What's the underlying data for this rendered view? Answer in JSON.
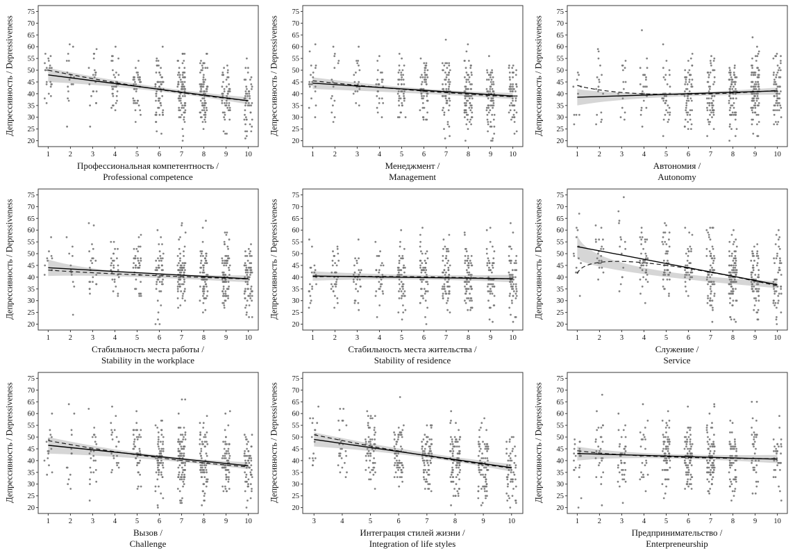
{
  "figure": {
    "ylabel_line1": "Депрессивность /",
    "ylabel_line2": "Depressiveness",
    "colors": {
      "point": "#757575",
      "band": "#cccccc",
      "solid_line": "#000000",
      "dashed_line": "#1a1a1a",
      "frame": "#3a3a3a",
      "text": "#111111"
    }
  },
  "chart_data": [
    {
      "type": "scatter",
      "xlabel_ru": "Профессиональная компетентность /",
      "xlabel_en": "Professional competence",
      "ylabel": "Депрессивность / Depressiveness",
      "xlim": [
        0.55,
        10.45
      ],
      "ylim": [
        17.5,
        77.5
      ],
      "xticks": [
        1,
        2,
        3,
        4,
        5,
        6,
        7,
        8,
        9,
        10
      ],
      "yticks": [
        20,
        25,
        30,
        35,
        40,
        45,
        50,
        55,
        60,
        65,
        70,
        75
      ],
      "solid_trend": {
        "x": [
          1,
          10
        ],
        "y": [
          48,
          37
        ]
      },
      "dashed_trend": {
        "x": [
          1,
          5.5,
          10
        ],
        "y": [
          50,
          42.5,
          37
        ]
      },
      "band": {
        "x": [
          1,
          5.5,
          10
        ],
        "upper": [
          51,
          43.5,
          38.5
        ],
        "lower": [
          45,
          41.5,
          35.5
        ]
      },
      "points": {
        "seed": 11,
        "n": 460,
        "sd": 8,
        "x_weights": [
          2,
          2,
          3,
          4,
          6,
          8,
          9,
          10,
          9,
          7
        ]
      }
    },
    {
      "type": "scatter",
      "xlabel_ru": "Менеджмент /",
      "xlabel_en": "Management",
      "ylabel": "Депрессивность / Depressiveness",
      "xlim": [
        0.55,
        10.45
      ],
      "ylim": [
        17.5,
        77.5
      ],
      "xticks": [
        1,
        2,
        3,
        4,
        5,
        6,
        7,
        8,
        9,
        10
      ],
      "yticks": [
        20,
        25,
        30,
        35,
        40,
        45,
        50,
        55,
        60,
        65,
        70,
        75
      ],
      "solid_trend": {
        "x": [
          1,
          10
        ],
        "y": [
          44.5,
          39
        ]
      },
      "dashed_trend": {
        "x": [
          1,
          5.5,
          10
        ],
        "y": [
          45.5,
          41.5,
          38.7
        ]
      },
      "band": {
        "x": [
          1,
          5.5,
          10
        ],
        "upper": [
          47,
          42.5,
          40.3
        ],
        "lower": [
          42,
          40.2,
          37.7
        ]
      },
      "points": {
        "seed": 22,
        "n": 460,
        "sd": 8,
        "x_weights": [
          2,
          3,
          3,
          4,
          6,
          8,
          9,
          10,
          9,
          7
        ]
      }
    },
    {
      "type": "scatter",
      "xlabel_ru": "Автономия /",
      "xlabel_en": "Autonomy",
      "ylabel": "Депрессивность / Depressiveness",
      "xlim": [
        0.55,
        10.45
      ],
      "ylim": [
        17.5,
        77.5
      ],
      "xticks": [
        1,
        2,
        3,
        4,
        5,
        6,
        7,
        8,
        9,
        10
      ],
      "yticks": [
        20,
        25,
        30,
        35,
        40,
        45,
        50,
        55,
        60,
        65,
        70,
        75
      ],
      "solid_trend": {
        "x": [
          1,
          10
        ],
        "y": [
          38.5,
          41.2
        ]
      },
      "dashed_trend": {
        "x": [
          1,
          4.5,
          10
        ],
        "y": [
          43.5,
          39.8,
          41.4
        ]
      },
      "band": {
        "x": [
          1,
          4.5,
          10
        ],
        "upper": [
          42,
          40.3,
          42.6
        ],
        "lower": [
          35,
          38.3,
          39.6
        ]
      },
      "points": {
        "seed": 33,
        "n": 460,
        "sd": 8,
        "x_weights": [
          1,
          2,
          2,
          3,
          5,
          7,
          9,
          10,
          10,
          8
        ]
      }
    },
    {
      "type": "scatter",
      "xlabel_ru": "Стабильность места работы /",
      "xlabel_en": "Stability in the workplace",
      "ylabel": "Депрессивность / Depressiveness",
      "xlim": [
        0.55,
        10.45
      ],
      "ylim": [
        17.5,
        77.5
      ],
      "xticks": [
        1,
        2,
        3,
        4,
        5,
        6,
        7,
        8,
        9,
        10
      ],
      "yticks": [
        20,
        25,
        30,
        35,
        40,
        45,
        50,
        55,
        60,
        65,
        70,
        75
      ],
      "solid_trend": {
        "x": [
          1,
          10
        ],
        "y": [
          44,
          39.3
        ]
      },
      "dashed_trend": {
        "x": [
          1,
          4.5,
          10
        ],
        "y": [
          43,
          41.2,
          39.2
        ]
      },
      "band": {
        "x": [
          1,
          4.5,
          10
        ],
        "upper": [
          47.5,
          42.3,
          40.8
        ],
        "lower": [
          40.5,
          40.2,
          37.8
        ]
      },
      "points": {
        "seed": 44,
        "n": 460,
        "sd": 8,
        "x_weights": [
          2,
          2,
          3,
          3,
          5,
          7,
          9,
          10,
          9,
          8
        ]
      }
    },
    {
      "type": "scatter",
      "xlabel_ru": "Стабильность места жительства /",
      "xlabel_en": "Stability of residence",
      "ylabel": "Депрессивность / Depressiveness",
      "xlim": [
        0.55,
        10.45
      ],
      "ylim": [
        17.5,
        77.5
      ],
      "xticks": [
        1,
        2,
        3,
        4,
        5,
        6,
        7,
        8,
        9,
        10
      ],
      "yticks": [
        20,
        25,
        30,
        35,
        40,
        45,
        50,
        55,
        60,
        65,
        70,
        75
      ],
      "solid_trend": {
        "x": [
          1,
          10
        ],
        "y": [
          40.5,
          39.3
        ]
      },
      "dashed_trend": {
        "x": [
          1,
          5.5,
          10
        ],
        "y": [
          40.2,
          40.2,
          39.2
        ]
      },
      "band": {
        "x": [
          1,
          5.5,
          10
        ],
        "upper": [
          42.5,
          41,
          41
        ],
        "lower": [
          38.5,
          39,
          37.8
        ]
      },
      "points": {
        "seed": 55,
        "n": 460,
        "sd": 8,
        "x_weights": [
          3,
          3,
          4,
          4,
          6,
          7,
          8,
          9,
          8,
          7
        ]
      }
    },
    {
      "type": "scatter",
      "xlabel_ru": "Служение /",
      "xlabel_en": "Service",
      "ylabel": "Депрессивность / Depressiveness",
      "xlim": [
        0.55,
        10.45
      ],
      "ylim": [
        17.5,
        77.5
      ],
      "xticks": [
        1,
        2,
        3,
        4,
        5,
        6,
        7,
        8,
        9,
        10
      ],
      "yticks": [
        20,
        25,
        30,
        35,
        40,
        45,
        50,
        55,
        60,
        65,
        70,
        75
      ],
      "solid_trend": {
        "x": [
          1,
          10
        ],
        "y": [
          53,
          36.8
        ]
      },
      "dashed_trend": {
        "x": [
          1,
          3.5,
          10
        ],
        "y": [
          41.5,
          46.5,
          36.3
        ]
      },
      "band": {
        "x": [
          1,
          3.5,
          10
        ],
        "upper": [
          58,
          45,
          38.3
        ],
        "lower": [
          48,
          42,
          35.3
        ]
      },
      "points": {
        "seed": 66,
        "n": 460,
        "sd": 8.5,
        "x_weights": [
          2,
          2,
          3,
          4,
          5,
          6,
          8,
          10,
          9,
          8
        ]
      }
    },
    {
      "type": "scatter",
      "xlabel_ru": "Вызов /",
      "xlabel_en": "Challenge",
      "ylabel": "Депрессивность / Depressiveness",
      "xlim": [
        0.55,
        10.45
      ],
      "ylim": [
        17.5,
        77.5
      ],
      "xticks": [
        1,
        2,
        3,
        4,
        5,
        6,
        7,
        8,
        9,
        10
      ],
      "yticks": [
        20,
        25,
        30,
        35,
        40,
        45,
        50,
        55,
        60,
        65,
        70,
        75
      ],
      "solid_trend": {
        "x": [
          1,
          10
        ],
        "y": [
          46.5,
          37.8
        ]
      },
      "dashed_trend": {
        "x": [
          1,
          5.5,
          10
        ],
        "y": [
          48.5,
          41.8,
          37.3
        ]
      },
      "band": {
        "x": [
          1,
          5.5,
          10
        ],
        "upper": [
          50,
          42.8,
          39.3
        ],
        "lower": [
          43,
          40.6,
          36.3
        ]
      },
      "points": {
        "seed": 77,
        "n": 460,
        "sd": 8,
        "x_weights": [
          2,
          2,
          3,
          4,
          6,
          8,
          9,
          10,
          9,
          7
        ]
      }
    },
    {
      "type": "scatter",
      "xlabel_ru": "Интеграция стилей жизни /",
      "xlabel_en": "Integration of life styles",
      "ylabel": "Депрессивность / Depressiveness",
      "xlim": [
        2.6,
        10.4
      ],
      "ylim": [
        17.5,
        77.5
      ],
      "xticks": [
        3,
        4,
        5,
        6,
        7,
        8,
        9,
        10
      ],
      "yticks": [
        20,
        25,
        30,
        35,
        40,
        45,
        50,
        55,
        60,
        65,
        70,
        75
      ],
      "solid_trend": {
        "x": [
          3,
          10
        ],
        "y": [
          49,
          37
        ]
      },
      "dashed_trend": {
        "x": [
          3,
          6.5,
          10
        ],
        "y": [
          51,
          43,
          36.8
        ]
      },
      "band": {
        "x": [
          3,
          6.5,
          10
        ],
        "upper": [
          52,
          44.2,
          38.5
        ],
        "lower": [
          46,
          42,
          35.3
        ]
      },
      "points": {
        "seed": 88,
        "n": 460,
        "sd": 8,
        "x_weights": [
          2,
          3,
          5,
          7,
          9,
          10,
          9,
          6
        ]
      }
    },
    {
      "type": "scatter",
      "xlabel_ru": "Предпринимательство /",
      "xlabel_en": "Enterpreneurship",
      "ylabel": "Депрессивность / Depressiveness",
      "xlim": [
        0.55,
        10.45
      ],
      "ylim": [
        17.5,
        77.5
      ],
      "xticks": [
        1,
        2,
        3,
        4,
        5,
        6,
        7,
        8,
        9,
        10
      ],
      "yticks": [
        20,
        25,
        30,
        35,
        40,
        45,
        50,
        55,
        60,
        65,
        70,
        75
      ],
      "solid_trend": {
        "x": [
          1,
          10
        ],
        "y": [
          43,
          40.6
        ]
      },
      "dashed_trend": {
        "x": [
          1,
          4.5,
          10
        ],
        "y": [
          44.2,
          41.8,
          40.8
        ]
      },
      "band": {
        "x": [
          1,
          4.5,
          10
        ],
        "upper": [
          46,
          43,
          42.4
        ],
        "lower": [
          40,
          41,
          38.9
        ]
      },
      "points": {
        "seed": 99,
        "n": 460,
        "sd": 8,
        "x_weights": [
          3,
          4,
          5,
          6,
          7,
          8,
          8,
          7,
          6,
          5
        ]
      }
    }
  ]
}
